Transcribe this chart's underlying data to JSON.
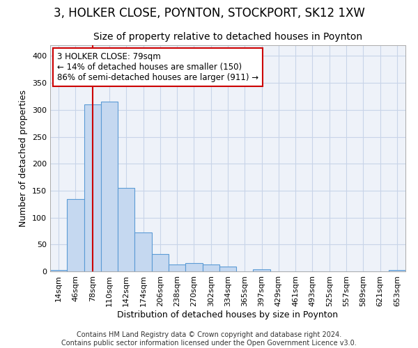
{
  "title1": "3, HOLKER CLOSE, POYNTON, STOCKPORT, SK12 1XW",
  "title2": "Size of property relative to detached houses in Poynton",
  "xlabel": "Distribution of detached houses by size in Poynton",
  "ylabel": "Number of detached properties",
  "bar_labels": [
    "14sqm",
    "46sqm",
    "78sqm",
    "110sqm",
    "142sqm",
    "174sqm",
    "206sqm",
    "238sqm",
    "270sqm",
    "302sqm",
    "334sqm",
    "365sqm",
    "397sqm",
    "429sqm",
    "461sqm",
    "493sqm",
    "525sqm",
    "557sqm",
    "589sqm",
    "621sqm",
    "653sqm"
  ],
  "bar_values": [
    3,
    135,
    310,
    315,
    155,
    72,
    32,
    13,
    15,
    13,
    9,
    0,
    4,
    0,
    0,
    0,
    0,
    0,
    0,
    0,
    2
  ],
  "bar_color": "#c5d8f0",
  "bar_edge_color": "#5b9bd5",
  "vline_x": 2.0,
  "vline_color": "#cc0000",
  "annotation_text": "3 HOLKER CLOSE: 79sqm\n← 14% of detached houses are smaller (150)\n86% of semi-detached houses are larger (911) →",
  "annotation_box_color": "#ffffff",
  "annotation_box_edge": "#cc0000",
  "ylim": [
    0,
    420
  ],
  "yticks": [
    0,
    50,
    100,
    150,
    200,
    250,
    300,
    350,
    400
  ],
  "grid_color": "#c8d4e8",
  "bg_color": "#eef2f9",
  "footer": "Contains HM Land Registry data © Crown copyright and database right 2024.\nContains public sector information licensed under the Open Government Licence v3.0.",
  "title1_fontsize": 12,
  "title2_fontsize": 10,
  "xlabel_fontsize": 9,
  "ylabel_fontsize": 9,
  "tick_fontsize": 8,
  "annot_fontsize": 8.5,
  "footer_fontsize": 7
}
